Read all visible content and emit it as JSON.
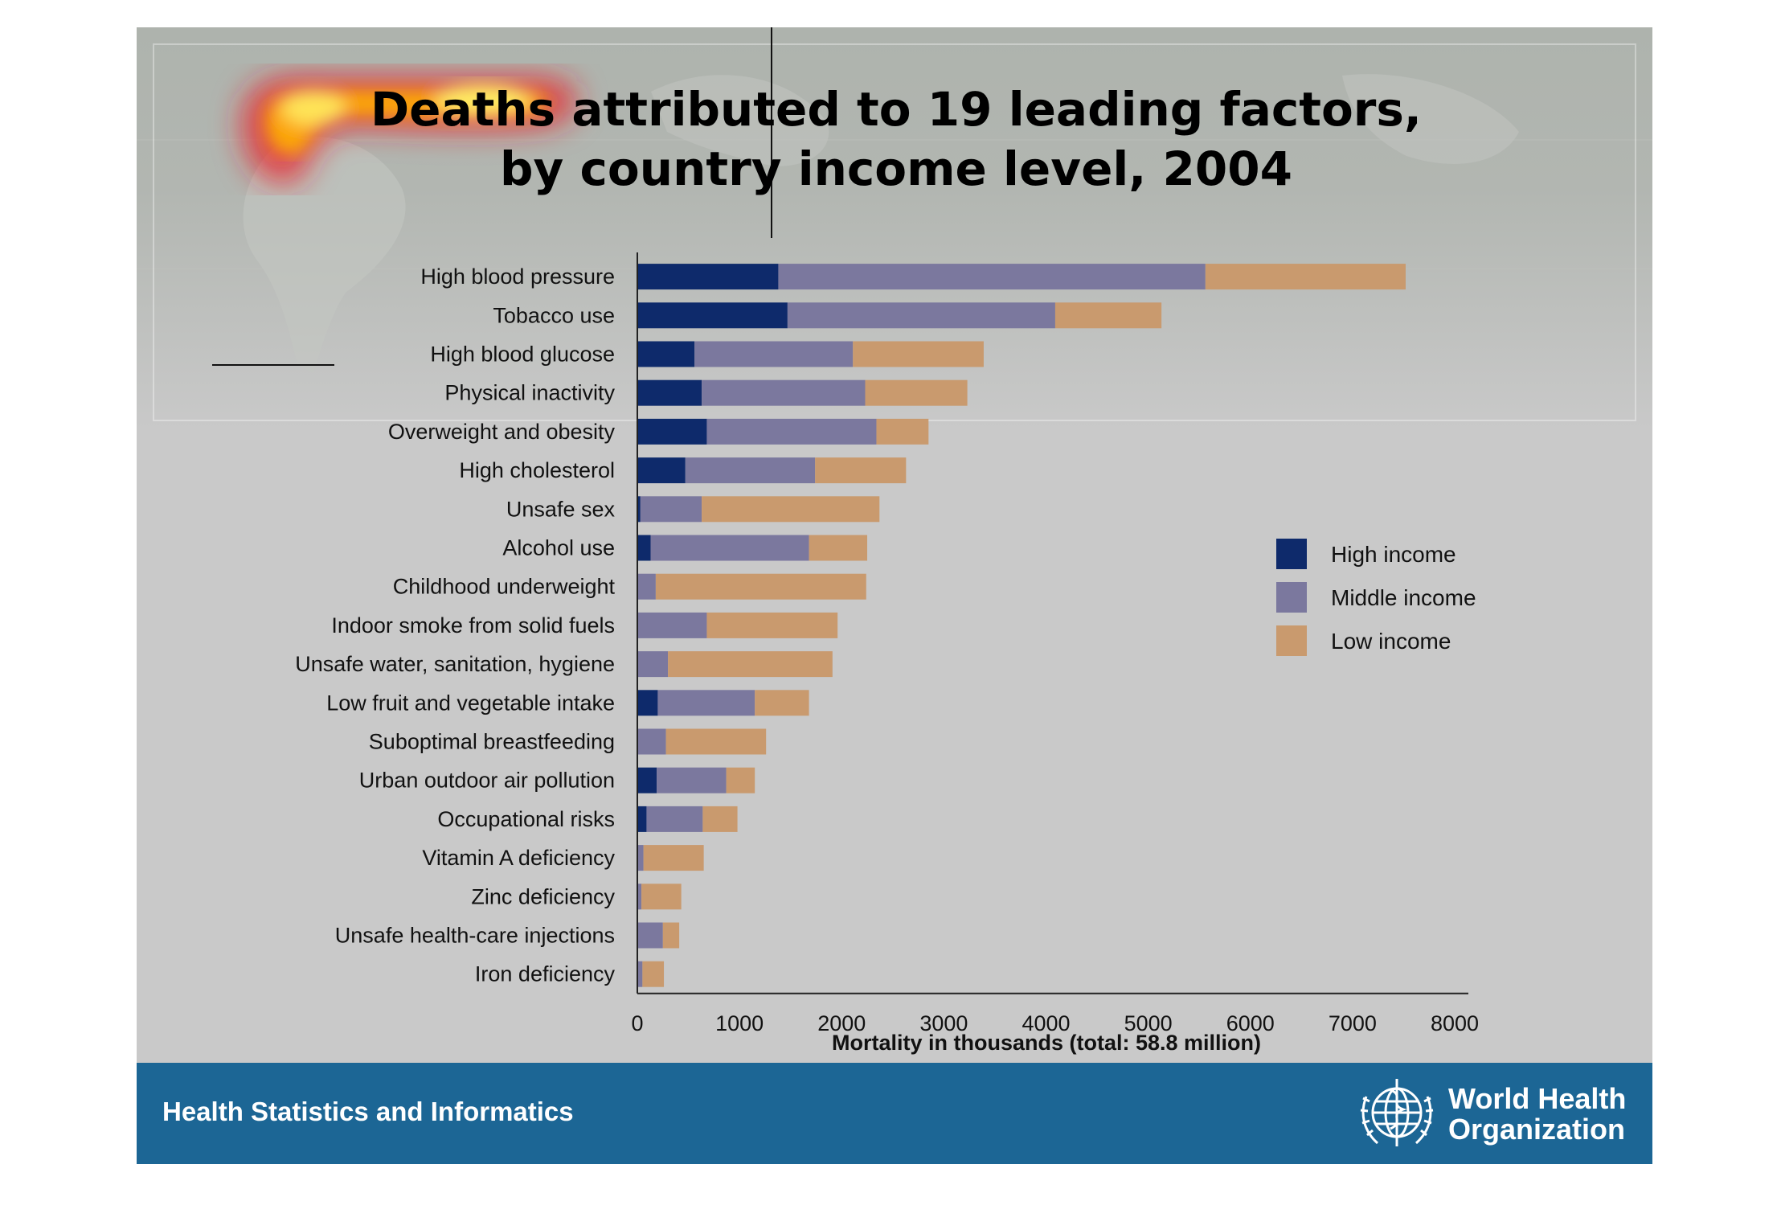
{
  "slide": {
    "footer_text": "Health Statistics and Informatics",
    "org_name_line1": "World Health",
    "org_name_line2": "Organization",
    "colors": {
      "footer": "#1c6695",
      "background": "#c9c9c9"
    }
  },
  "chart_data": {
    "type": "bar",
    "orientation": "horizontal",
    "stacked": true,
    "title_lines": [
      "Deaths attributed to 19 leading factors,",
      "by country income level, 2004"
    ],
    "xlabel": "Mortality in thousands (total: 58.8 million)",
    "xlim": [
      0,
      8000
    ],
    "xticks": [
      0,
      1000,
      2000,
      3000,
      4000,
      5000,
      6000,
      7000,
      8000
    ],
    "legend_position": "right",
    "categories": [
      "High blood pressure",
      "Tobacco use",
      "High blood glucose",
      "Physical inactivity",
      "Overweight and obesity",
      "High cholesterol",
      "Unsafe sex",
      "Alcohol use",
      "Childhood underweight",
      "Indoor smoke from solid fuels",
      "Unsafe water, sanitation, hygiene",
      "Low fruit and vegetable intake",
      "Suboptimal breastfeeding",
      "Urban outdoor air pollution",
      "Occupational risks",
      "Vitamin A deficiency",
      "Zinc deficiency",
      "Unsafe health-care injections",
      "Iron deficiency"
    ],
    "series": [
      {
        "name": "High income",
        "color": "#0e2a6b",
        "values": [
          1380,
          1470,
          560,
          630,
          680,
          470,
          30,
          130,
          0,
          0,
          0,
          200,
          0,
          190,
          90,
          0,
          0,
          0,
          0
        ]
      },
      {
        "name": "Middle income",
        "color": "#7b789e",
        "values": [
          4180,
          2620,
          1550,
          1600,
          1660,
          1270,
          600,
          1550,
          180,
          680,
          300,
          950,
          280,
          680,
          550,
          60,
          40,
          250,
          50
        ]
      },
      {
        "name": "Low income",
        "color": "#c99a6e",
        "values": [
          1960,
          1040,
          1280,
          1000,
          510,
          890,
          1740,
          570,
          2060,
          1280,
          1610,
          530,
          980,
          280,
          340,
          590,
          390,
          160,
          210
        ]
      }
    ]
  }
}
